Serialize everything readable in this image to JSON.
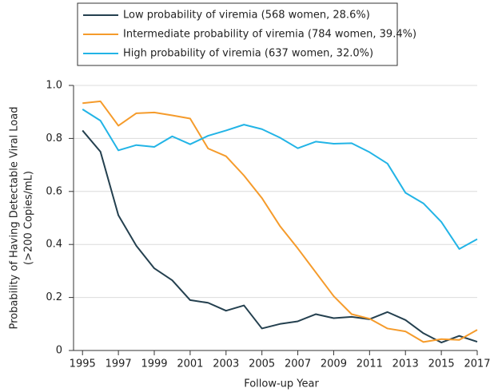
{
  "chart_data": {
    "type": "line",
    "x": [
      1995,
      1996,
      1997,
      1998,
      1999,
      2000,
      2001,
      2002,
      2003,
      2004,
      2005,
      2006,
      2007,
      2008,
      2009,
      2010,
      2011,
      2012,
      2013,
      2014,
      2015,
      2016,
      2017
    ],
    "series": [
      {
        "name": "Low probability of viremia (568 women, 28.6%)",
        "color": "#24404f",
        "values": [
          0.83,
          0.75,
          0.51,
          0.395,
          0.31,
          0.265,
          0.19,
          0.18,
          0.15,
          0.17,
          0.083,
          0.1,
          0.11,
          0.137,
          0.122,
          0.127,
          0.118,
          0.145,
          0.115,
          0.065,
          0.03,
          0.055,
          0.033
        ]
      },
      {
        "name": "Intermediate probability of viremia (784 women, 39.4%)",
        "color": "#f59b2b",
        "values": [
          0.933,
          0.94,
          0.848,
          0.895,
          0.898,
          0.887,
          0.875,
          0.762,
          0.733,
          0.66,
          0.575,
          0.47,
          0.385,
          0.295,
          0.205,
          0.137,
          0.12,
          0.083,
          0.072,
          0.032,
          0.043,
          0.04,
          0.078
        ]
      },
      {
        "name": "High probability of viremia (637 women, 32.0%)",
        "color": "#22b4e6",
        "values": [
          0.91,
          0.867,
          0.755,
          0.775,
          0.768,
          0.808,
          0.778,
          0.81,
          0.83,
          0.852,
          0.835,
          0.803,
          0.763,
          0.788,
          0.78,
          0.782,
          0.748,
          0.705,
          0.595,
          0.555,
          0.485,
          0.383,
          0.42
        ]
      }
    ],
    "xlabel": "Follow-up Year",
    "ylabel": [
      "Probability of Having Detectable Viral Load",
      "(>200 Copies/mL)"
    ],
    "xlim": [
      1994.5,
      2017
    ],
    "xticks": [
      1995,
      1997,
      1999,
      2001,
      2003,
      2005,
      2007,
      2009,
      2011,
      2013,
      2015,
      2017
    ],
    "ylim": [
      0,
      1
    ],
    "yticks": [
      0,
      0.2,
      0.4,
      0.6,
      0.8,
      {
        "value": 1,
        "label": "1.0"
      }
    ],
    "grid": true,
    "legend": "top"
  }
}
